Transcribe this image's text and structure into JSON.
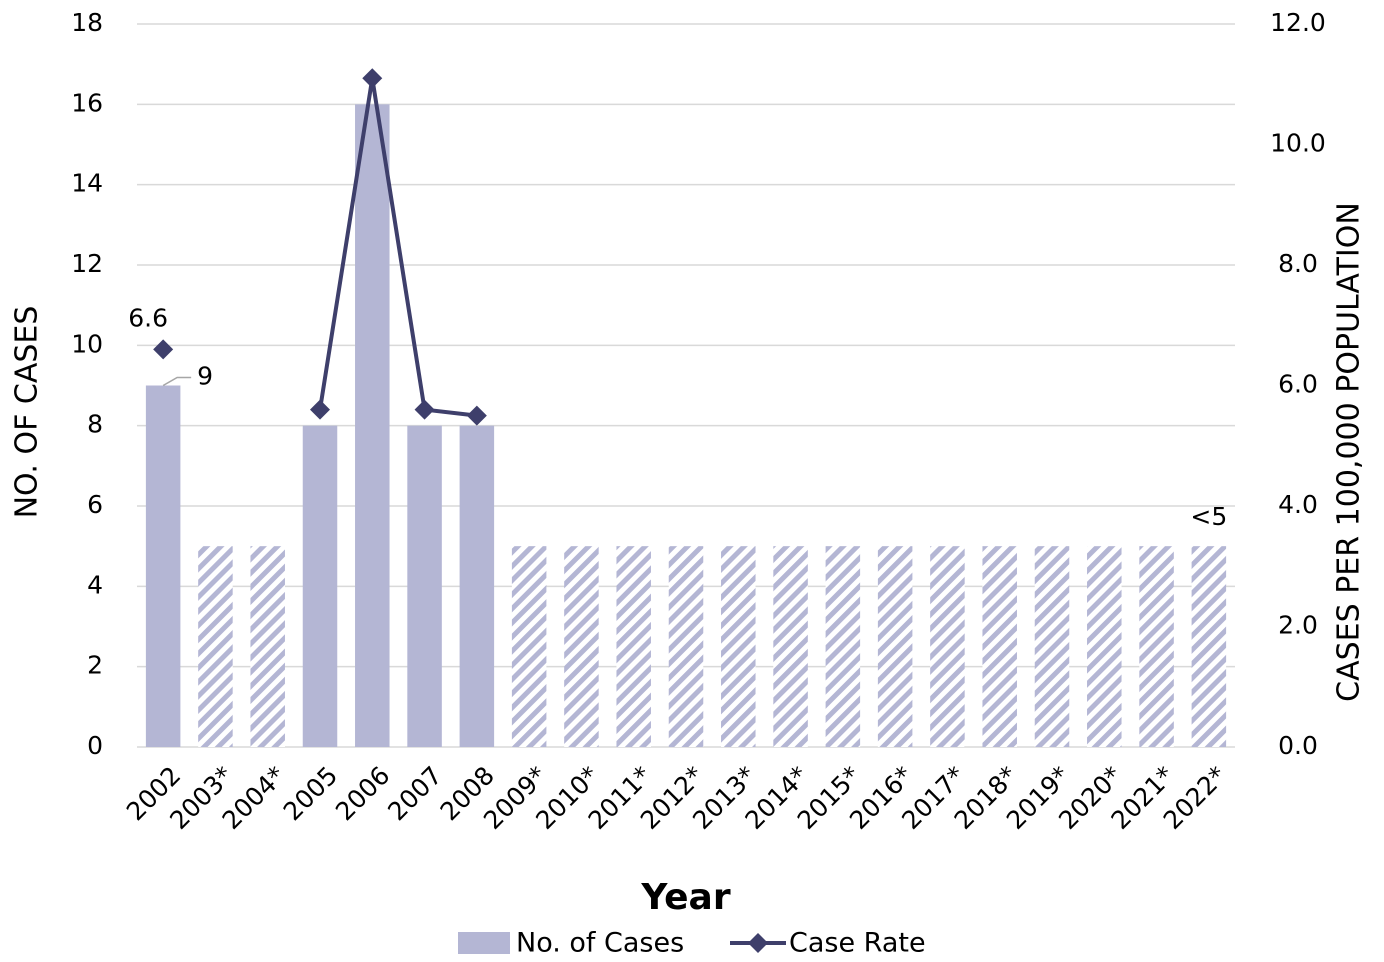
{
  "chart_data": {
    "type": "bar_line",
    "categories": [
      "2002",
      "2003*",
      "2004*",
      "2005",
      "2006",
      "2007",
      "2008",
      "2009*",
      "2010*",
      "2011*",
      "2012*",
      "2013*",
      "2014*",
      "2015*",
      "2016*",
      "2017*",
      "2018*",
      "2019*",
      "2020*",
      "2021*",
      "2022*"
    ],
    "series": [
      {
        "name": "No. of Cases",
        "color": "#b4b6d4",
        "values": [
          9,
          5,
          5,
          8,
          16,
          8,
          8,
          5,
          5,
          5,
          5,
          5,
          5,
          5,
          5,
          5,
          5,
          5,
          5,
          5,
          5
        ],
        "hatched": [
          false,
          true,
          true,
          false,
          false,
          false,
          false,
          true,
          true,
          true,
          true,
          true,
          true,
          true,
          true,
          true,
          true,
          true,
          true,
          true,
          true
        ],
        "value_labels": [
          "9",
          null,
          null,
          null,
          null,
          null,
          null,
          null,
          null,
          null,
          null,
          null,
          null,
          null,
          null,
          null,
          null,
          null,
          null,
          null,
          "<5"
        ]
      },
      {
        "name": "Case Rate",
        "color": "#3e3f6b",
        "axis": "y2",
        "values": [
          6.6,
          null,
          null,
          5.6,
          11.1,
          5.6,
          5.5,
          null,
          null,
          null,
          null,
          null,
          null,
          null,
          null,
          null,
          null,
          null,
          null,
          null,
          null
        ],
        "value_labels": [
          "6.6",
          null,
          null,
          null,
          null,
          null,
          null,
          null,
          null,
          null,
          null,
          null,
          null,
          null,
          null,
          null,
          null,
          null,
          null,
          null,
          null
        ]
      }
    ],
    "x_label": "Year",
    "y_label": "NO. OF CASES",
    "y2_label": "CASES PER 100,000 POPULATION",
    "ylim": [
      0,
      18
    ],
    "yticks": [
      0,
      2,
      4,
      6,
      8,
      10,
      12,
      14,
      16,
      18
    ],
    "y2lim": [
      0,
      12
    ],
    "y2ticks": [
      {
        "value": 0,
        "label": "0.0"
      },
      {
        "value": 2,
        "label": "2.0"
      },
      {
        "value": 4,
        "label": "4.0"
      },
      {
        "value": 6,
        "label": "6.0"
      },
      {
        "value": 8,
        "label": "8.0"
      },
      {
        "value": 10,
        "label": "10.0"
      },
      {
        "value": 12,
        "label": "12.0"
      }
    ],
    "grid": true,
    "legend": "bottom"
  }
}
